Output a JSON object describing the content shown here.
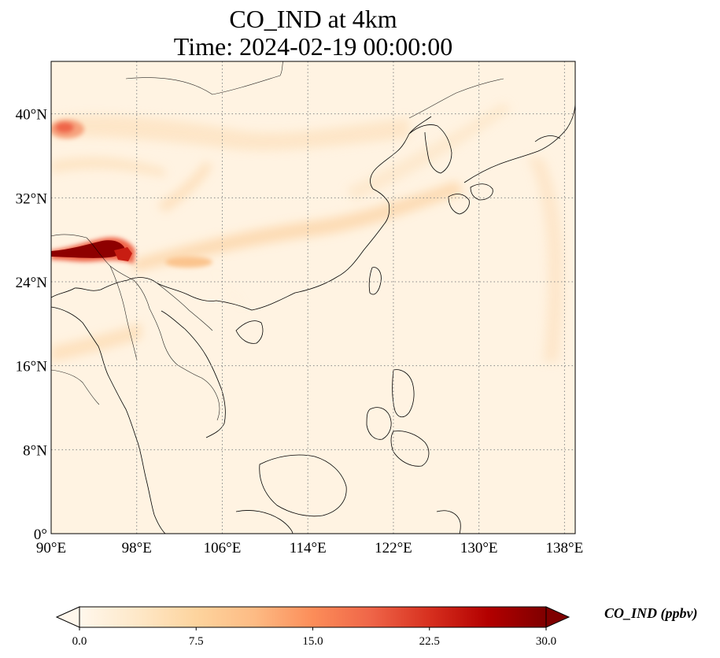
{
  "title": {
    "line1": "CO_IND at 4km",
    "line2": "Time: 2024-02-19 00:00:00"
  },
  "map": {
    "projection": "PlateCarree",
    "extent": {
      "lon": [
        90,
        139
      ],
      "lat": [
        0,
        45
      ]
    },
    "gridlines": "dotted",
    "lon_ticks": [
      {
        "value": 90,
        "label": "90°E"
      },
      {
        "value": 98,
        "label": "98°E"
      },
      {
        "value": 106,
        "label": "106°E"
      },
      {
        "value": 114,
        "label": "114°E"
      },
      {
        "value": 122,
        "label": "122°E"
      },
      {
        "value": 130,
        "label": "130°E"
      },
      {
        "value": 138,
        "label": "138°E"
      }
    ],
    "lat_ticks": [
      {
        "value": 0,
        "label": "0°"
      },
      {
        "value": 8,
        "label": "8°N"
      },
      {
        "value": 16,
        "label": "16°N"
      },
      {
        "value": 24,
        "label": "24°N"
      },
      {
        "value": 32,
        "label": "32°N"
      },
      {
        "value": 40,
        "label": "40°N"
      }
    ]
  },
  "colorbar": {
    "label": "CO_IND (ppbv)",
    "colormap": "OrRd",
    "range": [
      0,
      30
    ],
    "extend": "both",
    "ticks": [
      {
        "value": 0,
        "label": "0.0"
      },
      {
        "value": 7.5,
        "label": "7.5"
      },
      {
        "value": 15,
        "label": "15.0"
      },
      {
        "value": 22.5,
        "label": "22.5"
      },
      {
        "value": 30,
        "label": "30.0"
      }
    ],
    "stops": [
      "#fff7ec",
      "#fee8c8",
      "#fdd49e",
      "#fdbb84",
      "#fc8d59",
      "#ef6548",
      "#d7301f",
      "#b30000",
      "#7f0000"
    ]
  }
}
